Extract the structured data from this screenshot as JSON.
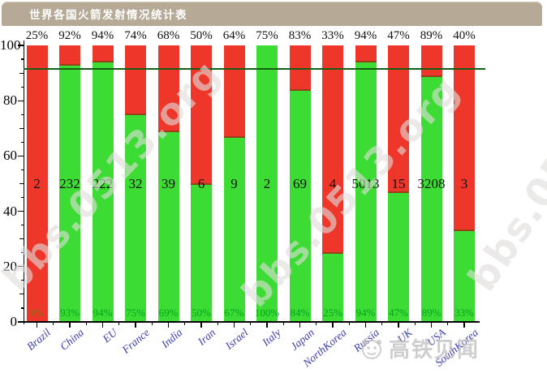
{
  "title_bar": {
    "text": "世界各国火箭发射情况统计表"
  },
  "chart_data": {
    "type": "bar",
    "stacked": true,
    "title": "世界各国火箭发射情况统计表",
    "categories": [
      "Brazil",
      "China",
      "EU",
      "France",
      "India",
      "Iran",
      "Israel",
      "Italy",
      "Japan",
      "NorthKorea",
      "Russia",
      "UK",
      "USA",
      "SouthKorea"
    ],
    "series": [
      {
        "name": "success_rate_green_pct",
        "values": [
          0,
          93,
          94,
          75,
          69,
          50,
          67,
          100,
          84,
          25,
          94,
          47,
          89,
          33
        ]
      },
      {
        "name": "failure_rate_red_pct",
        "values": [
          100,
          7,
          6,
          25,
          31,
          50,
          33,
          0,
          16,
          75,
          6,
          53,
          11,
          67
        ]
      }
    ],
    "top_labels": [
      "25%",
      "92%",
      "94%",
      "74%",
      "68%",
      "50%",
      "64%",
      "75%",
      "83%",
      "33%",
      "94%",
      "47%",
      "89%",
      "40%"
    ],
    "bar_value_labels": [
      "2",
      "232",
      "222",
      "32",
      "39",
      "6",
      "9",
      "2",
      "69",
      "4",
      "5013",
      "15",
      "3208",
      "3"
    ],
    "bottom_labels": [
      "0%",
      "93%",
      "94%",
      "75%",
      "69%",
      "50%",
      "67%",
      "100%",
      "84%",
      "25%",
      "94%",
      "47%",
      "89%",
      "33%"
    ],
    "y_axis": {
      "tick_labels": [
        "0",
        "20",
        "40",
        "60",
        "80",
        "100"
      ],
      "major_step": 20,
      "minor_step": 5,
      "ylim": [
        0,
        100
      ]
    },
    "x_axis": {
      "label_style": "rotated-italic-blue"
    },
    "reference_line": {
      "value": 91.5
    },
    "legend": "none",
    "grid": "off",
    "colors": {
      "green_bar": "#3cdc35",
      "red_bar": "#ee372a",
      "segment_divider": "#97401a",
      "reference_line": "#155f15",
      "bottom_label_green": "#00a41e",
      "bottom_label_on_red": "#8a6a12",
      "country_label": "#3c3caf",
      "axis": "#000000",
      "title_bar_bg": "#b6aa96"
    }
  },
  "watermarks": {
    "site_text": "bbs.0513.org",
    "logo_text": "高铁见闻"
  }
}
